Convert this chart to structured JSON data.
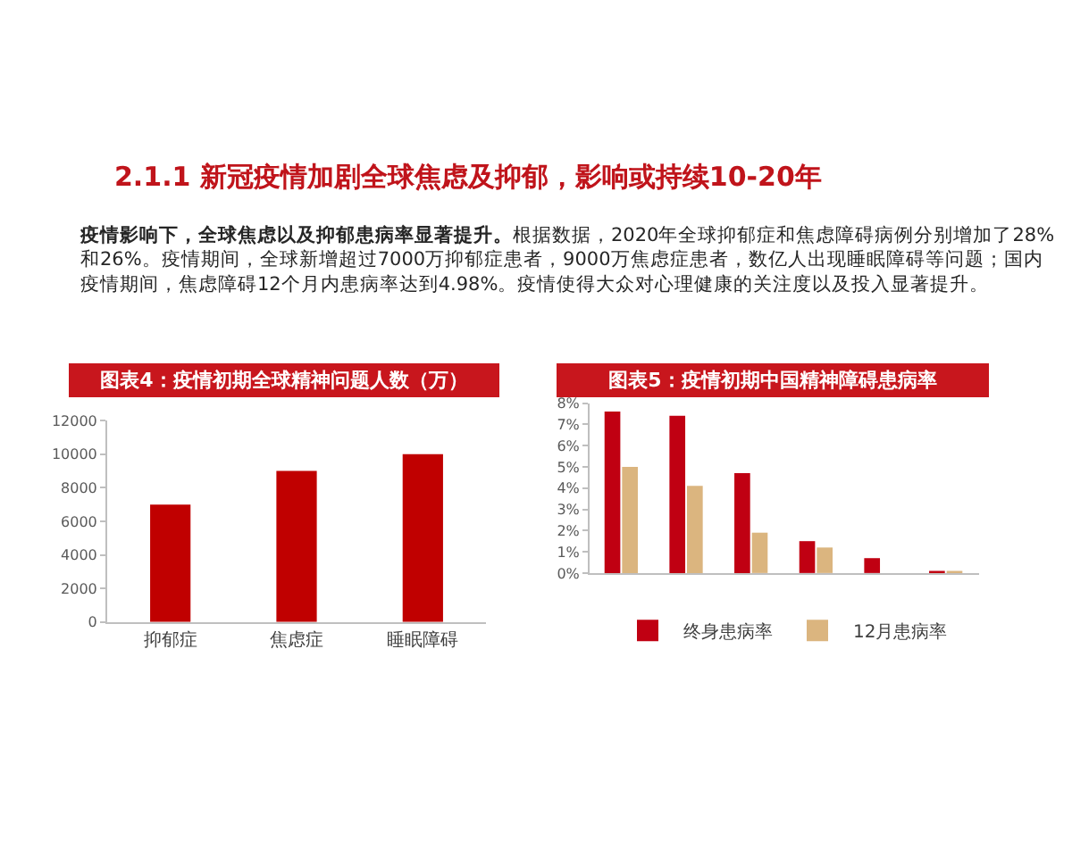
{
  "chart_data": [
    {
      "type": "other",
      "title": "2.1.1 新冠疫情加剧全球焦虑及抑郁，影响或持续10-20年",
      "annotations": [
        "疫情影响下，全球焦虑以及抑郁患病率显著提升。",
        "根据数据，2020年全球抑郁症和焦虑障碍病例分别增加了28%和26%。疫情期间，全球新增超过7000万抑郁症患者，9000万焦虑症患者，数亿人出现睡眠障碍等问题；国内疫情期间，焦虑障碍12个月内患病率达到4.98%。疫情使得大众对心理健康的关注度以及投入显著提升。"
      ]
    },
    {
      "type": "bar",
      "title": "图表4：疫情初期全球精神问题人数（万）",
      "categories": [
        "抑郁症",
        "焦虑症",
        "睡眠障碍"
      ],
      "values": [
        7000,
        9000,
        10000
      ],
      "color": "#c00000",
      "ylim": [
        0,
        12000
      ],
      "yticks": [
        0,
        2000,
        4000,
        6000,
        8000,
        10000,
        12000
      ]
    },
    {
      "type": "bar",
      "title": "图表5：疫情初期中国精神障碍患病率",
      "categories": [
        null,
        null,
        null,
        null,
        null,
        null
      ],
      "series": [
        {
          "name": "终身患病率",
          "color": "#c00012",
          "values": [
            7.6,
            7.4,
            4.7,
            1.5,
            0.7,
            0.1
          ]
        },
        {
          "name": "12月患病率",
          "color": "#dbb57f",
          "values": [
            5,
            4.1,
            1.9,
            1.2,
            null,
            0.1
          ]
        }
      ],
      "ylim": [
        0,
        8
      ],
      "yticks": [
        {
          "value": 0,
          "label": "0%"
        },
        {
          "value": 1,
          "label": "1%"
        },
        {
          "value": 2,
          "label": "2%"
        },
        {
          "value": 3,
          "label": "3%"
        },
        {
          "value": 4,
          "label": "4%"
        },
        {
          "value": 5,
          "label": "5%"
        },
        {
          "value": 6,
          "label": "6%"
        },
        {
          "value": 7,
          "label": "7%"
        },
        {
          "value": 8,
          "label": "8%"
        }
      ],
      "legend": "bottom"
    }
  ]
}
